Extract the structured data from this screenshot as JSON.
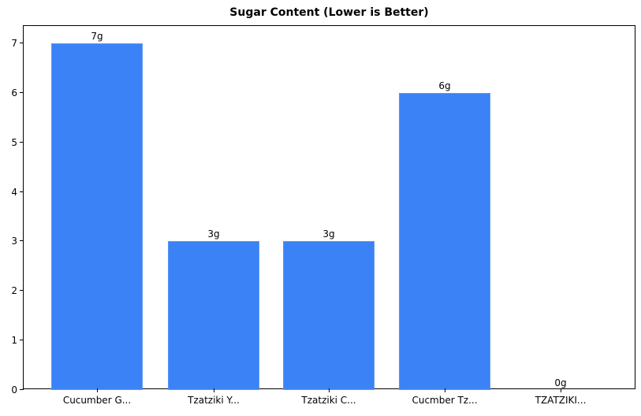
{
  "chart_data": {
    "type": "bar",
    "title": "Sugar Content (Lower is Better)",
    "xlabel": "",
    "ylabel": "",
    "categories": [
      "Cucumber G...",
      "Tzatziki Y...",
      "Tzatziki C...",
      "Cucmber Tz...",
      "TZATZIKI..."
    ],
    "values": [
      7,
      3,
      3,
      6,
      0
    ],
    "value_labels": [
      "7g",
      "3g",
      "3g",
      "6g",
      "0g"
    ],
    "ylim": [
      0,
      7.35
    ],
    "yticks": [
      0,
      1,
      2,
      3,
      4,
      5,
      6,
      7
    ],
    "grid": false,
    "legend": null,
    "bar_color": "#3b82f6"
  }
}
